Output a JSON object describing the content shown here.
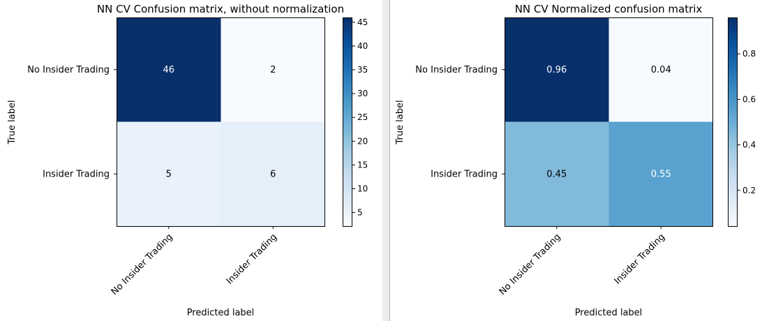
{
  "chart_data": [
    {
      "type": "heatmap",
      "title": "NN CV Confusion matrix, without normalization",
      "xlabel": "Predicted label",
      "ylabel": "True label",
      "x_categories": [
        "No Insider Trading",
        "Insider Trading"
      ],
      "y_categories": [
        "No Insider Trading",
        "Insider Trading"
      ],
      "values": [
        [
          46,
          2
        ],
        [
          5,
          6
        ]
      ],
      "cell_labels": [
        [
          "46",
          "2"
        ],
        [
          "5",
          "6"
        ]
      ],
      "colormap": "Blues",
      "color_range": [
        2,
        46
      ],
      "colorbar_ticks": [
        5,
        10,
        15,
        20,
        25,
        30,
        35,
        40,
        45
      ],
      "colorbar_tick_labels": [
        "5",
        "10",
        "15",
        "20",
        "25",
        "30",
        "35",
        "40",
        "45"
      ]
    },
    {
      "type": "heatmap",
      "title": "NN CV Normalized confusion matrix",
      "xlabel": "Predicted label",
      "ylabel": "True label",
      "x_categories": [
        "No Insider Trading",
        "Insider Trading"
      ],
      "y_categories": [
        "No Insider Trading",
        "Insider Trading"
      ],
      "values": [
        [
          0.96,
          0.04
        ],
        [
          0.45,
          0.55
        ]
      ],
      "cell_labels": [
        [
          "0.96",
          "0.04"
        ],
        [
          "0.45",
          "0.55"
        ]
      ],
      "colormap": "Blues",
      "color_range": [
        0.04,
        0.96
      ],
      "colorbar_ticks": [
        0.2,
        0.4,
        0.6,
        0.8
      ],
      "colorbar_tick_labels": [
        "0.2",
        "0.4",
        "0.6",
        "0.8"
      ]
    }
  ]
}
